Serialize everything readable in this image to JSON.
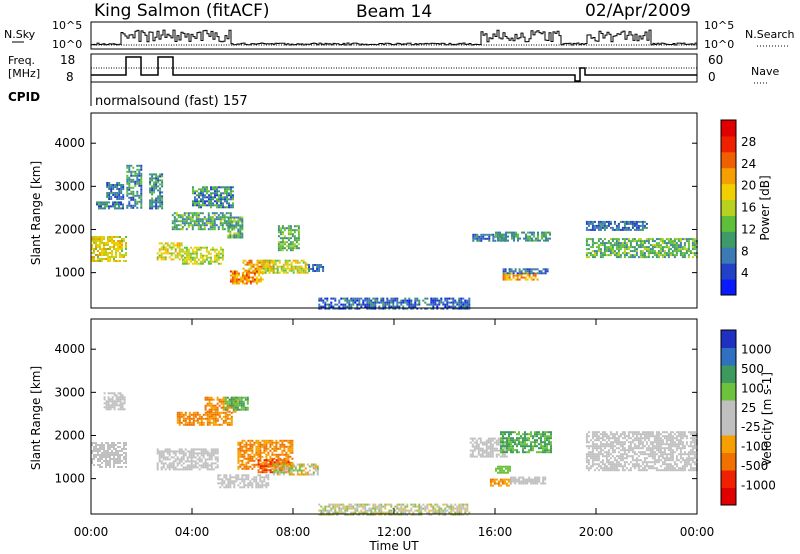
{
  "header": {
    "station": "King Salmon (fitACF)",
    "beam": "Beam 14",
    "date": "02/Apr/2009"
  },
  "sky_panel": {
    "left_label": "N.Sky",
    "right_label": "N.Search",
    "left_ticks": [
      "10^5",
      "10^0"
    ],
    "right_ticks": [
      "10^5",
      "10^0"
    ]
  },
  "freq_panel": {
    "left_label_1": "Freq.",
    "left_label_2": "[MHz]",
    "left_ticks": [
      "18",
      "8"
    ],
    "right_label": "Nave",
    "right_ticks": [
      "60",
      "0"
    ]
  },
  "cpid": {
    "label": "CPID",
    "program": "normalsound (fast) 157"
  },
  "colors": {
    "power_scale": [
      "#0a1aff",
      "#2340c8",
      "#3b7ab4",
      "#3f9a6a",
      "#5fbf3a",
      "#b8d020",
      "#f0d000",
      "#f5a000",
      "#f06000",
      "#ef2000",
      "#e00000"
    ],
    "velocity_scale": [
      "#2030c0",
      "#3070c0",
      "#3c9a5c",
      "#6cc23c",
      "#c0c0c0",
      "#c0c0c0",
      "#f5a000",
      "#f07000",
      "#f02000",
      "#e00000"
    ],
    "ground_scatter": "#c0c0c0"
  },
  "chart_data": [
    {
      "type": "heatmap",
      "name": "Power panel",
      "ylabel": "Slant Range [km]",
      "ylim": [
        180,
        4700
      ],
      "yticks": [
        "1000",
        "2000",
        "3000",
        "4000"
      ],
      "xlim": [
        0,
        24
      ],
      "colorbar_label": "Power [dB]",
      "colorbar_ticks": [
        "4",
        "8",
        "12",
        "16",
        "20",
        "24",
        "28"
      ],
      "colorbar_range": [
        0,
        32
      ],
      "regions": [
        {
          "t0": 0.0,
          "t1": 1.35,
          "r0": 1250,
          "r1": 1850,
          "v0": 14,
          "v1": 22
        },
        {
          "t0": 0.2,
          "t1": 1.3,
          "r0": 2500,
          "r1": 2650,
          "v0": 4,
          "v1": 12
        },
        {
          "t0": 0.6,
          "t1": 1.3,
          "r0": 2700,
          "r1": 3100,
          "v0": 4,
          "v1": 10
        },
        {
          "t0": 1.4,
          "t1": 2.0,
          "r0": 2500,
          "r1": 3500,
          "v0": 4,
          "v1": 14
        },
        {
          "t0": 2.3,
          "t1": 2.8,
          "r0": 2500,
          "r1": 3300,
          "v0": 4,
          "v1": 14
        },
        {
          "t0": 2.6,
          "t1": 3.6,
          "r0": 1300,
          "r1": 1700,
          "v0": 14,
          "v1": 22
        },
        {
          "t0": 3.6,
          "t1": 5.2,
          "r0": 1200,
          "r1": 1600,
          "v0": 12,
          "v1": 20
        },
        {
          "t0": 3.2,
          "t1": 5.5,
          "r0": 2000,
          "r1": 2400,
          "v0": 6,
          "v1": 16
        },
        {
          "t0": 4.0,
          "t1": 5.6,
          "r0": 2500,
          "r1": 3000,
          "v0": 4,
          "v1": 14
        },
        {
          "t0": 5.4,
          "t1": 6.0,
          "r0": 1800,
          "r1": 2300,
          "v0": 6,
          "v1": 16
        },
        {
          "t0": 6.0,
          "t1": 7.2,
          "r0": 1000,
          "r1": 1300,
          "v0": 16,
          "v1": 26
        },
        {
          "t0": 5.5,
          "t1": 6.8,
          "r0": 750,
          "r1": 1050,
          "v0": 18,
          "v1": 28
        },
        {
          "t0": 6.8,
          "t1": 8.6,
          "r0": 1000,
          "r1": 1300,
          "v0": 12,
          "v1": 22
        },
        {
          "t0": 7.4,
          "t1": 8.2,
          "r0": 1500,
          "r1": 2100,
          "v0": 8,
          "v1": 16
        },
        {
          "t0": 8.6,
          "t1": 9.2,
          "r0": 1050,
          "r1": 1200,
          "v0": 4,
          "v1": 10
        },
        {
          "t0": 15.1,
          "t1": 16.4,
          "r0": 1750,
          "r1": 1900,
          "v0": 4,
          "v1": 10
        },
        {
          "t0": 16.0,
          "t1": 18.2,
          "r0": 1750,
          "r1": 1950,
          "v0": 6,
          "v1": 14
        },
        {
          "t0": 16.3,
          "t1": 17.7,
          "r0": 850,
          "r1": 1000,
          "v0": 18,
          "v1": 26
        },
        {
          "t0": 16.3,
          "t1": 18.1,
          "r0": 1000,
          "r1": 1100,
          "v0": 4,
          "v1": 10
        },
        {
          "t0": 19.6,
          "t1": 24.0,
          "r0": 1350,
          "r1": 1800,
          "v0": 8,
          "v1": 16
        },
        {
          "t0": 19.6,
          "t1": 22.0,
          "r0": 2000,
          "r1": 2200,
          "v0": 4,
          "v1": 10
        },
        {
          "t0": 9.0,
          "t1": 15.0,
          "r0": 180,
          "r1": 420,
          "v0": 2,
          "v1": 10
        }
      ]
    },
    {
      "type": "heatmap",
      "name": "Velocity panel",
      "ylabel": "Slant Range [km]",
      "ylim": [
        180,
        4700
      ],
      "yticks": [
        "1000",
        "2000",
        "3000",
        "4000"
      ],
      "xlim": [
        0,
        24
      ],
      "xticks": [
        "00:00",
        "04:00",
        "08:00",
        "12:00",
        "16:00",
        "20:00",
        "00:00"
      ],
      "xlabel": "Time UT",
      "colorbar_label": "Velocity [m s-1]",
      "colorbar_ticks": [
        "1000",
        "500",
        "100",
        "25",
        "-25",
        "-100",
        "-500",
        "-1000"
      ],
      "regions": [
        {
          "t0": 0.0,
          "t1": 1.35,
          "r0": 1250,
          "r1": 1850,
          "cls": "gs"
        },
        {
          "t0": 2.6,
          "t1": 5.0,
          "r0": 1200,
          "r1": 1700,
          "cls": "gs"
        },
        {
          "t0": 0.5,
          "t1": 1.3,
          "r0": 2600,
          "r1": 3000,
          "cls": "gs"
        },
        {
          "t0": 3.4,
          "t1": 5.6,
          "r0": 2250,
          "r1": 2550,
          "cls": "neg"
        },
        {
          "t0": 4.5,
          "t1": 5.8,
          "r0": 2550,
          "r1": 2900,
          "cls": "neg"
        },
        {
          "t0": 5.3,
          "t1": 6.2,
          "r0": 2600,
          "r1": 2900,
          "cls": "pos"
        },
        {
          "t0": 5.8,
          "t1": 8.0,
          "r0": 1250,
          "r1": 1900,
          "cls": "neg"
        },
        {
          "t0": 6.6,
          "t1": 7.8,
          "r0": 1150,
          "r1": 1450,
          "cls": "neg2"
        },
        {
          "t0": 5.0,
          "t1": 7.0,
          "r0": 800,
          "r1": 1100,
          "cls": "gs"
        },
        {
          "t0": 7.2,
          "t1": 9.0,
          "r0": 1100,
          "r1": 1350,
          "cls": "mix"
        },
        {
          "t0": 15.0,
          "t1": 16.5,
          "r0": 1500,
          "r1": 1950,
          "cls": "gs"
        },
        {
          "t0": 16.2,
          "t1": 18.2,
          "r0": 1600,
          "r1": 2100,
          "cls": "pos"
        },
        {
          "t0": 16.0,
          "t1": 16.6,
          "r0": 1150,
          "r1": 1300,
          "cls": "pos2"
        },
        {
          "t0": 15.8,
          "t1": 16.6,
          "r0": 850,
          "r1": 1000,
          "cls": "neg"
        },
        {
          "t0": 16.6,
          "t1": 18.0,
          "r0": 900,
          "r1": 1050,
          "cls": "gs"
        },
        {
          "t0": 19.6,
          "t1": 24.0,
          "r0": 1200,
          "r1": 2100,
          "cls": "gs"
        },
        {
          "t0": 9.0,
          "t1": 15.0,
          "r0": 180,
          "r1": 420,
          "cls": "gslow"
        }
      ]
    }
  ]
}
